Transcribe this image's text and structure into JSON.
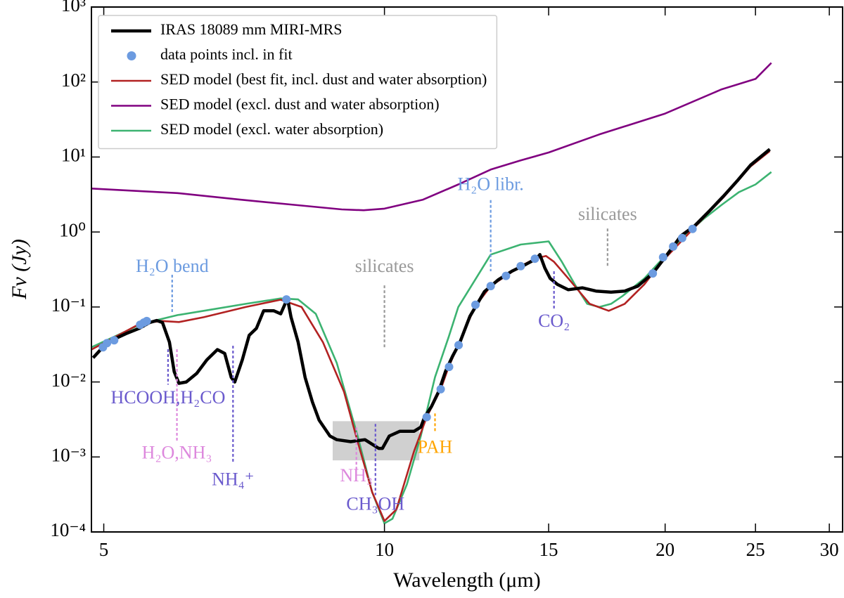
{
  "chart_data": {
    "type": "line",
    "xlabel": "Wavelength (μm)",
    "ylabel": "Fν (Jy)",
    "xscale": "log",
    "yscale": "log",
    "xlim": [
      4.85,
      31
    ],
    "ylim": [
      0.0001,
      1000
    ],
    "xticks": [
      5,
      10,
      15,
      20,
      25,
      30
    ],
    "yticks": [
      {
        "value": 0.0001,
        "label": "10⁻⁴"
      },
      {
        "value": 0.001,
        "label": "10⁻³"
      },
      {
        "value": 0.01,
        "label": "10⁻²"
      },
      {
        "value": 0.1,
        "label": "10⁻¹"
      },
      {
        "value": 1,
        "label": "10⁰"
      },
      {
        "value": 10,
        "label": "10¹"
      },
      {
        "value": 100,
        "label": "10²"
      },
      {
        "value": 1000,
        "label": "10³"
      }
    ],
    "legend": "upper left",
    "series": [
      {
        "name": "IRAS 18089 mm MIRI-MRS",
        "color": "#000000",
        "style": "line",
        "x": [
          4.87,
          5.0,
          5.1,
          5.28,
          5.46,
          5.6,
          5.7,
          5.78,
          5.88,
          5.95,
          6.02,
          6.13,
          6.29,
          6.45,
          6.62,
          6.74,
          6.85,
          6.91,
          7.04,
          7.16,
          7.29,
          7.42,
          7.61,
          7.74,
          7.87,
          7.94,
          8.08,
          8.22,
          8.37,
          8.51,
          8.74,
          8.89,
          9.2,
          9.53,
          9.86,
          9.95,
          10.12,
          10.39,
          10.76,
          10.94,
          11.04,
          11.23,
          11.43,
          11.63,
          11.83,
          12.04,
          12.35,
          12.8,
          13.24,
          13.7,
          14.18,
          14.55,
          14.68,
          14.86,
          15.06,
          15.33,
          15.74,
          16.3,
          16.86,
          17.5,
          18.1,
          18.7,
          19.4,
          20.05,
          20.8,
          21.5,
          22.3,
          23.1,
          23.9,
          24.7,
          25.9
        ],
        "values": [
          0.021,
          0.03,
          0.036,
          0.044,
          0.052,
          0.062,
          0.066,
          0.062,
          0.034,
          0.0137,
          0.0096,
          0.01,
          0.013,
          0.0197,
          0.027,
          0.024,
          0.0115,
          0.01,
          0.0197,
          0.042,
          0.052,
          0.089,
          0.089,
          0.081,
          0.13,
          0.073,
          0.034,
          0.0115,
          0.0054,
          0.0031,
          0.0019,
          0.0017,
          0.0016,
          0.0017,
          0.0013,
          0.0013,
          0.0019,
          0.0022,
          0.0022,
          0.0025,
          0.0034,
          0.0047,
          0.0074,
          0.0139,
          0.022,
          0.033,
          0.075,
          0.16,
          0.23,
          0.3,
          0.37,
          0.44,
          0.5,
          0.33,
          0.24,
          0.2,
          0.17,
          0.18,
          0.163,
          0.158,
          0.163,
          0.19,
          0.28,
          0.48,
          0.89,
          1.2,
          1.9,
          3.0,
          4.8,
          7.8,
          12.7
        ]
      },
      {
        "name": "data points incl. in fit",
        "color": "#6c9be0",
        "style": "points",
        "x": [
          4.99,
          5.04,
          5.13,
          5.47,
          5.52,
          5.56,
          7.85,
          11.1,
          11.49,
          11.73,
          12.01,
          12.52,
          13.0,
          13.5,
          14.0,
          14.5,
          19.4,
          19.9,
          20.4,
          20.86,
          21.4
        ],
        "values": [
          0.029,
          0.033,
          0.036,
          0.058,
          0.062,
          0.065,
          0.126,
          0.0034,
          0.008,
          0.0159,
          0.031,
          0.107,
          0.19,
          0.26,
          0.35,
          0.44,
          0.28,
          0.46,
          0.64,
          0.83,
          1.1
        ]
      },
      {
        "name": "SED model (best fit, incl. dust and water absorption)",
        "color": "#b22222",
        "style": "line",
        "x": [
          4.85,
          5.47,
          5.77,
          6.02,
          6.4,
          7.1,
          7.74,
          8.15,
          8.59,
          9.05,
          9.36,
          9.7,
          10,
          10.3,
          10.76,
          11.1,
          11.49,
          11.72,
          12.0,
          12.5,
          13.0,
          13.5,
          14.0,
          14.5,
          14.9,
          15.2,
          15.75,
          16.6,
          17.4,
          18.1,
          19.0,
          19.4,
          20.05,
          21.5,
          23.1,
          24.7,
          25.9
        ],
        "values": [
          0.027,
          0.06,
          0.065,
          0.063,
          0.073,
          0.1,
          0.125,
          0.1,
          0.034,
          0.0074,
          0.0016,
          0.00034,
          0.00014,
          0.0002,
          0.0012,
          0.0034,
          0.008,
          0.016,
          0.031,
          0.1,
          0.19,
          0.26,
          0.35,
          0.44,
          0.48,
          0.4,
          0.24,
          0.11,
          0.089,
          0.11,
          0.2,
          0.28,
          0.46,
          1.15,
          2.9,
          7.5,
          12
        ]
      },
      {
        "name": "SED model (excl. dust and water absorption)",
        "color": "#800080",
        "style": "line",
        "x": [
          4.85,
          6,
          7,
          8,
          9,
          9.5,
          10,
          11,
          12,
          13,
          14,
          15,
          17,
          20,
          23,
          25,
          26
        ],
        "values": [
          3.8,
          3.3,
          2.7,
          2.3,
          2.0,
          1.95,
          2.05,
          2.7,
          4.3,
          6.8,
          9.0,
          11.5,
          20,
          38,
          80,
          110,
          180
        ]
      },
      {
        "name": "SED model (excl. water absorption)",
        "color": "#3cb371",
        "style": "line",
        "x": [
          4.85,
          5.5,
          6.0,
          6.4,
          7.1,
          7.74,
          8.08,
          8.44,
          8.89,
          9.36,
          9.7,
          10,
          10.2,
          10.57,
          10.94,
          11.33,
          11.72,
          12.0,
          13.0,
          14.0,
          15.0,
          15.5,
          16.0,
          16.5,
          17.0,
          17.5,
          18.0,
          19.0,
          20.0,
          21.0,
          22.0,
          23.0,
          24.0,
          25.0,
          26.0
        ],
        "values": [
          0.029,
          0.06,
          0.078,
          0.089,
          0.11,
          0.13,
          0.126,
          0.081,
          0.0178,
          0.0019,
          0.00034,
          0.00013,
          0.00015,
          0.00043,
          0.0019,
          0.0116,
          0.04,
          0.1,
          0.5,
          0.68,
          0.75,
          0.4,
          0.2,
          0.11,
          0.1,
          0.11,
          0.14,
          0.24,
          0.48,
          0.89,
          1.5,
          2.3,
          3.4,
          4.3,
          6.3
        ]
      }
    ],
    "shaded_region": {
      "x": [
        8.8,
        10.9
      ],
      "y": [
        0.0009,
        0.003
      ],
      "color": "#b0b0b0"
    },
    "annotations": [
      {
        "text": "H₂O bend",
        "color": "#6c9be0",
        "x": 5.92,
        "y": 0.335,
        "line": [
          0.269,
          0.081
        ]
      },
      {
        "text": "HCOOH,H₂CO",
        "color": "#6a5acd",
        "x": 5.86,
        "y": 0.0059,
        "line": [
          0.0273,
          0.0092
        ]
      },
      {
        "text": "H₂O,NH₃",
        "color": "#dd88dd",
        "x": 5.99,
        "y": 0.00108,
        "line": [
          0.0273,
          0.0016
        ]
      },
      {
        "text": "NH₄⁺",
        "color": "#6a5acd",
        "x": 6.88,
        "y": 0.00048,
        "line": [
          0.0304,
          0.00083
        ]
      },
      {
        "text": "silicates",
        "color": "#999999",
        "x": 10,
        "y": 0.335,
        "line": [
          0.194,
          0.0273
        ]
      },
      {
        "text": "NH₃",
        "color": "#dd88dd",
        "x": 9.33,
        "y": 0.00054,
        "line": [
          0.00248,
          0.00067
        ]
      },
      {
        "text": "CH₃OH",
        "color": "#6a5acd",
        "x": 9.78,
        "y": 0.000225,
        "line": [
          0.00276,
          0.00031
        ]
      },
      {
        "text": "PAH",
        "color": "#ffa500",
        "x": 11.33,
        "y": 0.00129,
        "line": [
          0.0038,
          0.0022
        ]
      },
      {
        "text": "H₂O libr.",
        "color": "#6c9be0",
        "x": 13.0,
        "y": 4.1,
        "line": [
          2.66,
          0.3
        ]
      },
      {
        "text": "CO₂",
        "color": "#6a5acd",
        "x": 15.2,
        "y": 0.062,
        "line": [
          0.3,
          0.09
        ]
      },
      {
        "text": "silicates",
        "color": "#999999",
        "x": 17.35,
        "y": 1.64,
        "line": [
          1.11,
          0.335
        ]
      }
    ]
  }
}
